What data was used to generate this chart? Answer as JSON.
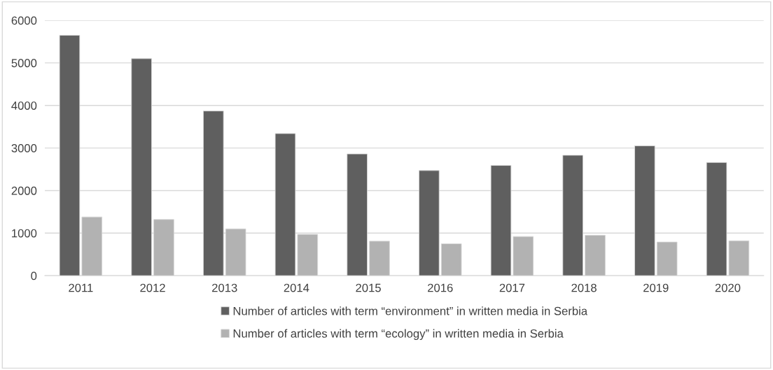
{
  "chart_data": {
    "type": "bar",
    "categories": [
      "2011",
      "2012",
      "2013",
      "2014",
      "2015",
      "2016",
      "2017",
      "2018",
      "2019",
      "2020"
    ],
    "series": [
      {
        "name": "Number of articles with term “environment” in written media in Serbia",
        "color": "#5f5f5f",
        "values": [
          5650,
          5100,
          3870,
          3340,
          2860,
          2470,
          2590,
          2830,
          3050,
          2660
        ]
      },
      {
        "name": "Number of articles with term “ecology” in written media in Serbia",
        "color": "#b2b2b2",
        "values": [
          1380,
          1320,
          1100,
          970,
          810,
          750,
          920,
          950,
          790,
          820
        ]
      }
    ],
    "ylim": [
      0,
      6000
    ],
    "yticks": [
      0,
      1000,
      2000,
      3000,
      4000,
      5000,
      6000
    ],
    "grid": "y",
    "legend": "bottom"
  }
}
